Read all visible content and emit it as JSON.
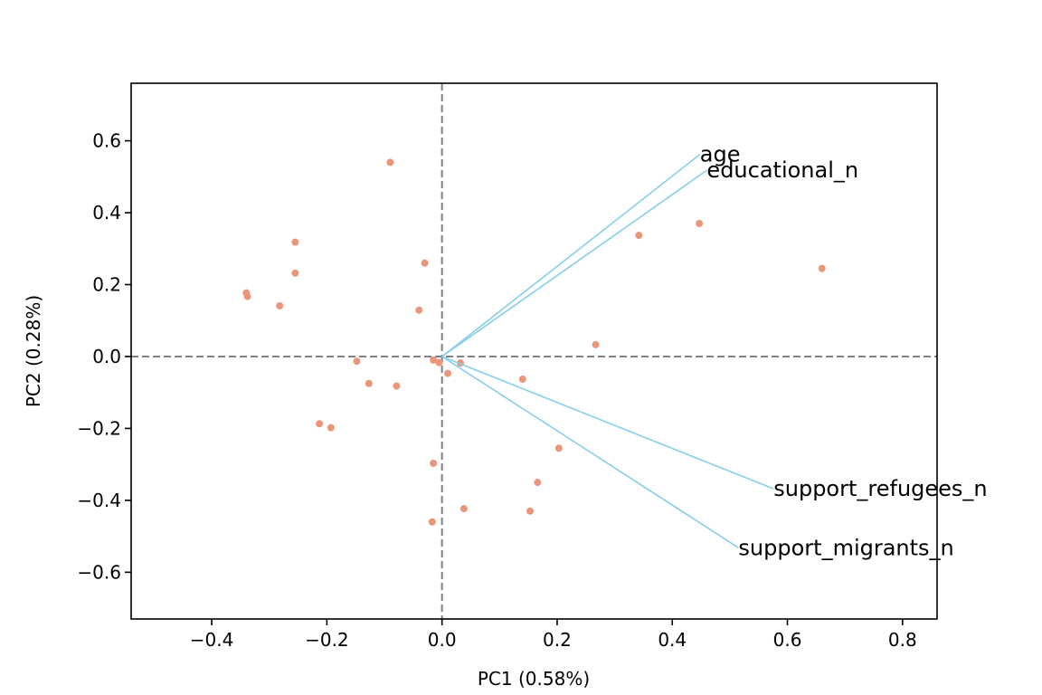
{
  "chart_data": {
    "type": "scatter",
    "title": "",
    "xlabel": "PC1 (0.58%)",
    "ylabel": "PC2 (0.28%)",
    "xlim": [
      -0.54,
      0.86
    ],
    "ylim": [
      -0.73,
      0.76
    ],
    "xticks": [
      -0.4,
      -0.2,
      0.0,
      0.2,
      0.4,
      0.6,
      0.8
    ],
    "xtick_labels": [
      "−0.4",
      "−0.2",
      "0.0",
      "0.2",
      "0.4",
      "0.6",
      "0.8"
    ],
    "yticks": [
      -0.6,
      -0.4,
      -0.2,
      0.0,
      0.2,
      0.4,
      0.6
    ],
    "ytick_labels": [
      "−0.6",
      "−0.4",
      "−0.2",
      "0.0",
      "0.2",
      "0.4",
      "0.6"
    ],
    "grid": false,
    "reference_lines": [
      {
        "axis": "x",
        "value": 0,
        "style": "dashed"
      },
      {
        "axis": "y",
        "value": 0,
        "style": "dashed"
      }
    ],
    "points": [
      {
        "x": -0.09,
        "y": 0.54
      },
      {
        "x": -0.255,
        "y": 0.318
      },
      {
        "x": -0.255,
        "y": 0.232
      },
      {
        "x": -0.34,
        "y": 0.177
      },
      {
        "x": -0.338,
        "y": 0.167
      },
      {
        "x": -0.282,
        "y": 0.141
      },
      {
        "x": -0.03,
        "y": 0.26
      },
      {
        "x": -0.04,
        "y": 0.129
      },
      {
        "x": -0.148,
        "y": -0.013
      },
      {
        "x": -0.127,
        "y": -0.075
      },
      {
        "x": -0.079,
        "y": -0.082
      },
      {
        "x": -0.213,
        "y": -0.187
      },
      {
        "x": -0.193,
        "y": -0.198
      },
      {
        "x": -0.015,
        "y": -0.01
      },
      {
        "x": -0.005,
        "y": -0.017
      },
      {
        "x": 0.032,
        "y": -0.018
      },
      {
        "x": 0.01,
        "y": -0.047
      },
      {
        "x": -0.015,
        "y": -0.297
      },
      {
        "x": -0.017,
        "y": -0.46
      },
      {
        "x": 0.038,
        "y": -0.423
      },
      {
        "x": 0.14,
        "y": -0.063
      },
      {
        "x": 0.153,
        "y": -0.43
      },
      {
        "x": 0.166,
        "y": -0.35
      },
      {
        "x": 0.203,
        "y": -0.255
      },
      {
        "x": 0.267,
        "y": 0.033
      },
      {
        "x": 0.342,
        "y": 0.337
      },
      {
        "x": 0.447,
        "y": 0.37
      },
      {
        "x": 0.66,
        "y": 0.245
      }
    ],
    "loadings": [
      {
        "label": "age",
        "x": 0.448,
        "y": 0.562
      },
      {
        "label": "educational_n",
        "x": 0.46,
        "y": 0.518
      },
      {
        "label": "support_refugees_n",
        "x": 0.576,
        "y": -0.368
      },
      {
        "label": "support_migrants_n",
        "x": 0.515,
        "y": -0.532
      }
    ],
    "colors": {
      "points": "#e9967a",
      "loadings": "#87ceeb",
      "reference": "#808080",
      "axes": "#000000"
    }
  }
}
